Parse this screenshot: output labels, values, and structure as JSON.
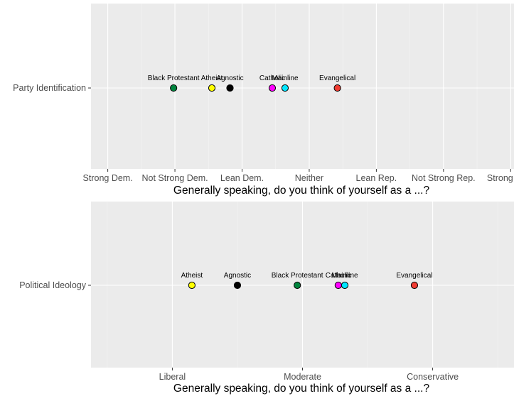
{
  "chart_data": [
    {
      "type": "scatter",
      "title": "",
      "ylabel": "",
      "xlabel": "Generally speaking, do you think of yourself as a ...?",
      "y_category": "Party Identification",
      "xlim": [
        0.75,
        7.05
      ],
      "x_ticks": [
        1,
        2,
        3,
        4,
        5,
        6,
        7
      ],
      "x_tick_labels": [
        "Strong Dem.",
        "Not Strong Dem.",
        "Lean Dem.",
        "Neither",
        "Lean Rep.",
        "Not Strong Rep.",
        "Strong Rep."
      ],
      "grid": true,
      "points": [
        {
          "label": "Black Protestant",
          "x": 1.98,
          "color": "#00843D"
        },
        {
          "label": "Atheist",
          "x": 2.55,
          "color": "#FFFF00"
        },
        {
          "label": "Agnostic",
          "x": 2.82,
          "color": "#000000"
        },
        {
          "label": "Catholic",
          "x": 3.45,
          "color": "#FF00FF"
        },
        {
          "label": "Mainline",
          "x": 3.64,
          "color": "#00E5FF"
        },
        {
          "label": "Evangelical",
          "x": 4.42,
          "color": "#F03C32"
        }
      ]
    },
    {
      "type": "scatter",
      "title": "",
      "ylabel": "",
      "xlabel": "Generally speaking, do you think of yourself as a ...?",
      "y_category": "Political Ideology",
      "xlim": [
        0.75,
        7.25
      ],
      "x_ticks": [
        2,
        4,
        6
      ],
      "x_minor_ticks": [
        1,
        3,
        5,
        7
      ],
      "x_tick_labels": [
        "Liberal",
        "Moderate",
        "Conservative"
      ],
      "grid": true,
      "points": [
        {
          "label": "Atheist",
          "x": 2.3,
          "color": "#FFFF00"
        },
        {
          "label": "Agnostic",
          "x": 3.0,
          "color": "#000000"
        },
        {
          "label": "Black Protestant",
          "x": 3.92,
          "color": "#00843D"
        },
        {
          "label": "Catholic",
          "x": 4.55,
          "color": "#FF00FF"
        },
        {
          "label": "Mainline",
          "x": 4.65,
          "color": "#00E5FF"
        },
        {
          "label": "Evangelical",
          "x": 5.72,
          "color": "#F03C32"
        }
      ]
    }
  ]
}
